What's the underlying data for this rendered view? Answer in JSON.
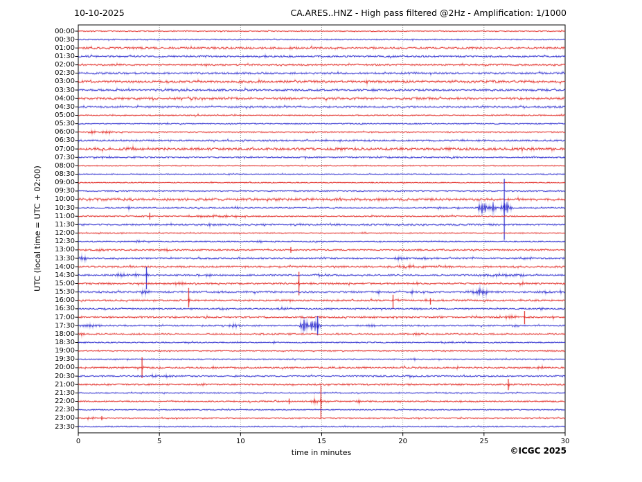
{
  "header": {
    "date": "10-10-2025",
    "title": "CA.ARES..HNZ - High pass filtered @2Hz - Amplification: 1/1000"
  },
  "footer": {
    "copyright": "©ICGC 2025"
  },
  "chart_data": {
    "type": "line",
    "subtype": "helicorder-seismogram",
    "title": "CA.ARES..HNZ - High pass filtered @2Hz - Amplification: 1/1000",
    "xlabel": "time in minutes",
    "ylabel": "UTC (local time = UTC + 02:00)",
    "x_range": [
      0,
      30
    ],
    "x_ticks": [
      0,
      5,
      10,
      15,
      20,
      25,
      30
    ],
    "grid_minutes": [
      5,
      10,
      15,
      20,
      25
    ],
    "grid": true,
    "legend_position": "none",
    "colors": {
      "red": "#e0201a",
      "blue": "#2222cc",
      "grid": "#777777",
      "frame": "#000000"
    },
    "rows": [
      {
        "label": "00:00",
        "color": "red",
        "noise": 0.45,
        "events": []
      },
      {
        "label": "00:30",
        "color": "blue",
        "noise": 0.5,
        "events": []
      },
      {
        "label": "01:00",
        "color": "red",
        "noise": 1.1,
        "events": []
      },
      {
        "label": "01:30",
        "color": "blue",
        "noise": 0.9,
        "events": []
      },
      {
        "label": "02:00",
        "color": "red",
        "noise": 0.8,
        "events": []
      },
      {
        "label": "02:30",
        "color": "blue",
        "noise": 1.0,
        "events": []
      },
      {
        "label": "03:00",
        "color": "red",
        "noise": 1.2,
        "events": []
      },
      {
        "label": "03:30",
        "color": "blue",
        "noise": 1.0,
        "events": [
          {
            "t": 5.6,
            "a": 1.8,
            "w": 0.3
          }
        ]
      },
      {
        "label": "04:00",
        "color": "red",
        "noise": 1.2,
        "events": []
      },
      {
        "label": "04:30",
        "color": "blue",
        "noise": 0.9,
        "events": []
      },
      {
        "label": "05:00",
        "color": "red",
        "noise": 0.6,
        "events": []
      },
      {
        "label": "05:30",
        "color": "blue",
        "noise": 0.6,
        "events": []
      },
      {
        "label": "06:00",
        "color": "red",
        "noise": 0.55,
        "events": [
          {
            "t": 0.9,
            "a": 2.4,
            "w": 0.25
          },
          {
            "t": 1.8,
            "a": 2.4,
            "w": 0.3
          }
        ]
      },
      {
        "label": "06:30",
        "color": "blue",
        "noise": 0.85,
        "events": []
      },
      {
        "label": "07:00",
        "color": "red",
        "noise": 1.4,
        "events": []
      },
      {
        "label": "07:30",
        "color": "blue",
        "noise": 0.8,
        "events": []
      },
      {
        "label": "08:00",
        "color": "red",
        "noise": 0.5,
        "events": []
      },
      {
        "label": "08:30",
        "color": "blue",
        "noise": 0.5,
        "events": []
      },
      {
        "label": "09:00",
        "color": "red",
        "noise": 0.5,
        "events": []
      },
      {
        "label": "09:30",
        "color": "blue",
        "noise": 0.55,
        "events": []
      },
      {
        "label": "10:00",
        "color": "red",
        "noise": 1.3,
        "events": []
      },
      {
        "label": "10:30",
        "color": "blue",
        "noise": 0.6,
        "events": [
          {
            "t": 3.1,
            "a": 1.8,
            "w": 0.15
          },
          {
            "t": 9.7,
            "a": 1.6,
            "w": 0.3
          },
          {
            "t": 22.3,
            "a": 1.8,
            "w": 0.2
          },
          {
            "t": 23.4,
            "a": 1.4,
            "w": 0.15
          },
          {
            "t": 24.95,
            "a": 9,
            "w": 0.28
          },
          {
            "t": 25.55,
            "a": 6,
            "w": 0.18
          },
          {
            "t": 26.35,
            "a": 9,
            "w": 0.3
          },
          {
            "t": 26.25,
            "s": 1,
            "up": 42,
            "dn": 46
          }
        ]
      },
      {
        "label": "11:00",
        "color": "red",
        "noise": 0.65,
        "events": [
          {
            "t": 4.4,
            "s": 1,
            "up": 5,
            "dn": 5
          },
          {
            "t": 8.5,
            "a": 1.0,
            "w": 1.5
          }
        ]
      },
      {
        "label": "11:30",
        "color": "blue",
        "noise": 0.85,
        "events": [
          {
            "t": 8.1,
            "a": 1.3,
            "w": 0.25
          }
        ]
      },
      {
        "label": "12:00",
        "color": "red",
        "noise": 0.5,
        "events": []
      },
      {
        "label": "12:30",
        "color": "blue",
        "noise": 0.55,
        "events": [
          {
            "t": 3.7,
            "a": 1.2,
            "w": 0.15
          },
          {
            "t": 11.2,
            "a": 1.8,
            "w": 0.2
          }
        ]
      },
      {
        "label": "13:00",
        "color": "red",
        "noise": 0.75,
        "events": [
          {
            "t": 1.5,
            "a": 1.2,
            "w": 0.3
          },
          {
            "t": 5.3,
            "a": 1.4,
            "w": 0.3
          },
          {
            "t": 13.1,
            "s": 1,
            "up": 4,
            "dn": 4
          }
        ]
      },
      {
        "label": "13:30",
        "color": "blue",
        "noise": 0.8,
        "events": [
          {
            "t": 0.35,
            "a": 3.2,
            "w": 0.3
          },
          {
            "t": 19.8,
            "a": 2.2,
            "w": 0.35
          },
          {
            "t": 21.5,
            "a": 1.2,
            "w": 0.3
          },
          {
            "t": 27.6,
            "a": 1.8,
            "w": 0.5
          }
        ]
      },
      {
        "label": "14:00",
        "color": "red",
        "noise": 0.95,
        "events": [
          {
            "t": 20.3,
            "a": 1.5,
            "w": 0.9
          },
          {
            "t": 22.6,
            "a": 1.3,
            "w": 0.5
          },
          {
            "t": 29.3,
            "a": 1.8,
            "w": 0.3
          }
        ]
      },
      {
        "label": "14:30",
        "color": "blue",
        "noise": 0.8,
        "events": [
          {
            "t": 2.6,
            "a": 2.8,
            "w": 0.35
          },
          {
            "t": 3.5,
            "a": 2.2,
            "w": 0.25
          },
          {
            "t": 4.2,
            "s": 1,
            "up": 12,
            "dn": 20
          },
          {
            "t": 4.25,
            "a": 3,
            "w": 0.12
          },
          {
            "t": 8.0,
            "a": 1.4,
            "w": 0.3
          },
          {
            "t": 15.0,
            "a": 1.3,
            "w": 0.4
          },
          {
            "t": 25.8,
            "a": 1.6,
            "w": 0.9
          },
          {
            "t": 27.2,
            "a": 1.5,
            "w": 0.4
          }
        ]
      },
      {
        "label": "15:00",
        "color": "red",
        "noise": 0.9,
        "events": [
          {
            "t": 6.3,
            "a": 1.3,
            "w": 0.5
          },
          {
            "t": 13.6,
            "s": 1,
            "up": 17,
            "dn": 17
          },
          {
            "t": 13.6,
            "a": 2.5,
            "w": 0.12
          },
          {
            "t": 20.8,
            "a": 1.6,
            "w": 0.25
          },
          {
            "t": 27.3,
            "a": 2.2,
            "w": 0.25
          }
        ]
      },
      {
        "label": "15:30",
        "color": "blue",
        "noise": 0.9,
        "events": [
          {
            "t": 4.15,
            "a": 3,
            "w": 0.35
          },
          {
            "t": 9.0,
            "a": 1.4,
            "w": 0.25
          },
          {
            "t": 18.5,
            "a": 2.2,
            "w": 0.1
          },
          {
            "t": 20.6,
            "a": 2.6,
            "w": 0.12
          },
          {
            "t": 24.7,
            "a": 4,
            "w": 0.5
          },
          {
            "t": 25.1,
            "a": 3,
            "w": 0.2
          },
          {
            "t": 28.6,
            "a": 1.6,
            "w": 0.4
          },
          {
            "t": 29.7,
            "a": 1.8,
            "w": 0.15
          }
        ]
      },
      {
        "label": "16:00",
        "color": "red",
        "noise": 0.85,
        "events": [
          {
            "t": 6.8,
            "s": 1,
            "up": 18,
            "dn": 10
          },
          {
            "t": 6.8,
            "a": 2.5,
            "w": 0.1
          },
          {
            "t": 19.4,
            "s": 1,
            "up": 8,
            "dn": 12
          },
          {
            "t": 21.7,
            "s": 1,
            "up": 3,
            "dn": 6
          }
        ]
      },
      {
        "label": "16:30",
        "color": "blue",
        "noise": 0.75,
        "events": [
          {
            "t": 8.8,
            "a": 1.6,
            "w": 0.5
          },
          {
            "t": 12.5,
            "a": 1.5,
            "w": 0.7
          },
          {
            "t": 21.0,
            "a": 1.1,
            "w": 0.4
          }
        ]
      },
      {
        "label": "17:00",
        "color": "red",
        "noise": 0.85,
        "events": [
          {
            "t": 19.3,
            "a": 1.2,
            "w": 0.4
          },
          {
            "t": 26.7,
            "a": 1.8,
            "w": 0.4
          },
          {
            "t": 27.5,
            "s": 1,
            "up": 9,
            "dn": 10
          },
          {
            "t": 29.2,
            "a": 2.6,
            "w": 0.1
          }
        ]
      },
      {
        "label": "17:30",
        "color": "blue",
        "noise": 0.7,
        "events": [
          {
            "t": 0.8,
            "a": 1.3,
            "w": 0.7
          },
          {
            "t": 9.6,
            "a": 1.8,
            "w": 0.35
          },
          {
            "t": 13.95,
            "a": 9,
            "w": 0.25
          },
          {
            "t": 14.55,
            "a": 8,
            "w": 0.3
          },
          {
            "t": 14.75,
            "s": 1,
            "up": 14,
            "dn": 14
          },
          {
            "t": 18.1,
            "a": 1.4,
            "w": 0.3
          },
          {
            "t": 26.9,
            "a": 1.2,
            "w": 0.4
          }
        ]
      },
      {
        "label": "18:00",
        "color": "red",
        "noise": 0.75,
        "events": [
          {
            "t": 0.2,
            "a": 2.2,
            "w": 0.15
          },
          {
            "t": 21.0,
            "a": 1.0,
            "w": 0.5
          }
        ]
      },
      {
        "label": "18:30",
        "color": "blue",
        "noise": 0.6,
        "events": [
          {
            "t": 12.05,
            "a": 1.6,
            "w": 0.12
          },
          {
            "t": 23.0,
            "a": 1.3,
            "w": 0.12
          }
        ]
      },
      {
        "label": "19:00",
        "color": "red",
        "noise": 0.55,
        "events": []
      },
      {
        "label": "19:30",
        "color": "blue",
        "noise": 0.55,
        "events": [
          {
            "t": 20.7,
            "a": 1.3,
            "w": 0.25
          }
        ]
      },
      {
        "label": "20:00",
        "color": "red",
        "noise": 0.9,
        "events": [
          {
            "t": 3.93,
            "s": 1,
            "up": 15,
            "dn": 15
          },
          {
            "t": 3.93,
            "a": 2,
            "w": 0.12
          },
          {
            "t": 28.5,
            "a": 1.2,
            "w": 0.4
          }
        ]
      },
      {
        "label": "20:30",
        "color": "blue",
        "noise": 0.75,
        "events": [
          {
            "t": 4.6,
            "a": 1.4,
            "w": 0.3
          },
          {
            "t": 5.6,
            "a": 1.3,
            "w": 0.3
          },
          {
            "t": 20.4,
            "a": 1.8,
            "w": 0.25
          }
        ]
      },
      {
        "label": "21:00",
        "color": "red",
        "noise": 0.8,
        "events": [
          {
            "t": 7.8,
            "a": 1.4,
            "w": 0.3
          },
          {
            "t": 26.5,
            "s": 1,
            "up": 8,
            "dn": 8
          },
          {
            "t": 26.5,
            "a": 2,
            "w": 0.12
          }
        ]
      },
      {
        "label": "21:30",
        "color": "blue",
        "noise": 0.55,
        "events": []
      },
      {
        "label": "22:00",
        "color": "red",
        "noise": 0.7,
        "events": [
          {
            "t": 13.0,
            "s": 1,
            "up": 4,
            "dn": 4
          },
          {
            "t": 14.55,
            "a": 3.5,
            "w": 0.25
          },
          {
            "t": 14.95,
            "s": 1,
            "up": 22,
            "dn": 25
          },
          {
            "t": 14.95,
            "a": 3,
            "w": 0.15
          },
          {
            "t": 15.3,
            "a": 2,
            "w": 0.2
          },
          {
            "t": 17.3,
            "a": 2.5,
            "w": 0.2
          }
        ]
      },
      {
        "label": "22:30",
        "color": "blue",
        "noise": 0.55,
        "events": []
      },
      {
        "label": "23:00",
        "color": "red",
        "noise": 0.55,
        "events": [
          {
            "t": 0.65,
            "a": 1.8,
            "w": 0.12
          },
          {
            "t": 0.95,
            "a": 1.8,
            "w": 0.12
          },
          {
            "t": 1.45,
            "s": 1,
            "up": 3,
            "dn": 3
          }
        ]
      },
      {
        "label": "23:30",
        "color": "blue",
        "noise": 0.5,
        "events": []
      }
    ]
  }
}
